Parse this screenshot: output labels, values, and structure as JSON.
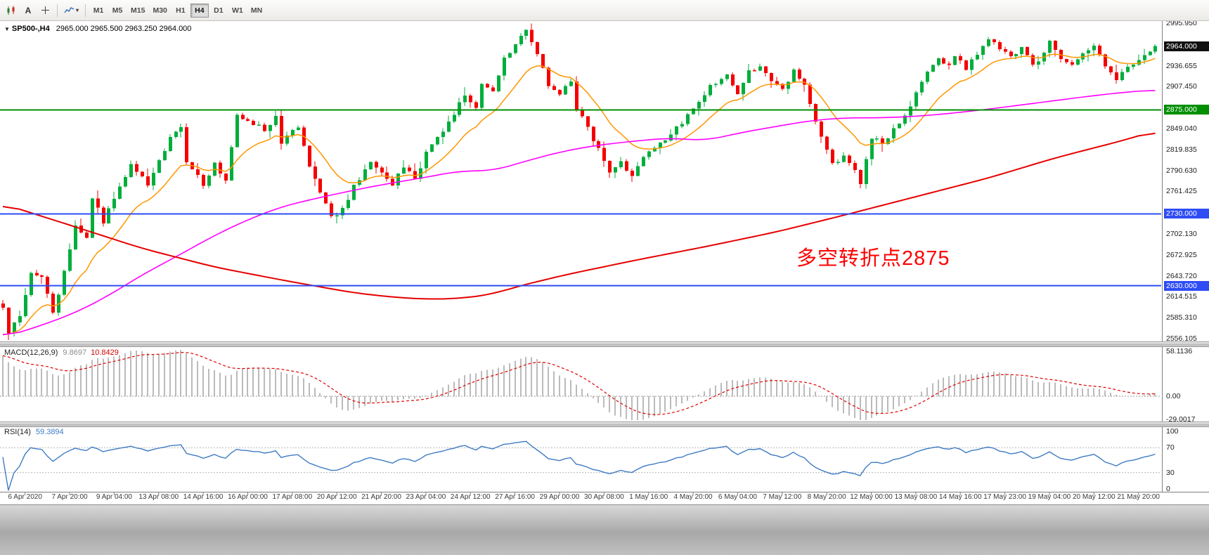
{
  "toolbar": {
    "text_tool_glyph": "A",
    "caret_glyph": "▾",
    "timeframes": [
      "M1",
      "M5",
      "M15",
      "M30",
      "H1",
      "H4",
      "D1",
      "W1",
      "MN"
    ],
    "active_timeframe": "H4",
    "icons": [
      "candlestick-chart-icon",
      "text-annotation-icon",
      "crosshair-icon",
      "indicators-icon"
    ]
  },
  "chart": {
    "collapse_glyph": "▼",
    "symbol_title": "SP500-,H4",
    "ohlc_text": "2965.000 2965.500 2963.250 2964.000",
    "annotation": {
      "text": "多空转折点2875",
      "color": "#FE0000"
    }
  },
  "macd": {
    "label": "MACD(12,26,9)",
    "value1": "9.8697",
    "value2": "10.8429",
    "axis": [
      "58.1136",
      "0.00",
      "-29.0017"
    ]
  },
  "rsi": {
    "label": "RSI(14)",
    "value": "59.3894",
    "axis": [
      "100",
      "70",
      "30",
      "0"
    ]
  },
  "time_axis": [
    "6 Apr 2020",
    "7 Apr 20:00",
    "9 Apr 04:00",
    "13 Apr 08:00",
    "14 Apr 16:00",
    "16 Apr 00:00",
    "17 Apr 08:00",
    "20 Apr 12:00",
    "21 Apr 20:00",
    "23 Apr 04:00",
    "24 Apr 12:00",
    "27 Apr 16:00",
    "29 Apr 00:00",
    "30 Apr 08:00",
    "1 May 16:00",
    "4 May 20:00",
    "6 May 04:00",
    "7 May 12:00",
    "8 May 20:00",
    "12 May 00:00",
    "13 May 08:00",
    "14 May 16:00",
    "17 May 23:00",
    "19 May 04:00",
    "20 May 12:00",
    "21 May 20:00"
  ],
  "chart_data": {
    "type": "candlestick",
    "symbol": "SP500-",
    "timeframe": "H4",
    "num_candles": 208,
    "price_axis": {
      "max": 2995.95,
      "min": 2556.105,
      "step": 29.205,
      "labels": [
        "2995.950",
        "2936.655",
        "2907.450",
        "2849.040",
        "2819.835",
        "2790.630",
        "2761.425",
        "2702.130",
        "2672.925",
        "2643.720",
        "2614.515",
        "2585.310",
        "2556.105"
      ]
    },
    "current_price": {
      "value": 2964.0,
      "label": "2964.000",
      "bg": "#111111"
    },
    "hlines": [
      {
        "price": 2875,
        "label": "2875.000",
        "color": "#008F00"
      },
      {
        "price": 2730,
        "label": "2730.000",
        "color": "#2F4DF5"
      },
      {
        "price": 2630,
        "label": "2630.000",
        "color": "#2F4DF5"
      }
    ],
    "colors": {
      "up": "#00AE3C",
      "down": "#F50000",
      "ma_fast": "#FF9600",
      "ma_mid": "#FF00FF",
      "ma_slow": "#E60000",
      "macd_bar": "#BBBBBB",
      "macd_signal": "#E00000",
      "rsi": "#3E7BC4",
      "level_dotted": "#B8B8B8"
    },
    "price_anchors": [
      [
        0,
        2600
      ],
      [
        1,
        2562
      ],
      [
        3,
        2590
      ],
      [
        5,
        2648
      ],
      [
        7,
        2640
      ],
      [
        9,
        2592
      ],
      [
        11,
        2648
      ],
      [
        13,
        2715
      ],
      [
        15,
        2700
      ],
      [
        16,
        2755
      ],
      [
        18,
        2720
      ],
      [
        21,
        2768
      ],
      [
        23,
        2798
      ],
      [
        26,
        2770
      ],
      [
        30,
        2838
      ],
      [
        32,
        2848
      ],
      [
        33,
        2800
      ],
      [
        36,
        2772
      ],
      [
        38,
        2800
      ],
      [
        40,
        2778
      ],
      [
        42,
        2866
      ],
      [
        44,
        2858
      ],
      [
        47,
        2848
      ],
      [
        49,
        2864
      ],
      [
        50,
        2830
      ],
      [
        53,
        2850
      ],
      [
        55,
        2798
      ],
      [
        57,
        2760
      ],
      [
        59,
        2726
      ],
      [
        61,
        2736
      ],
      [
        63,
        2768
      ],
      [
        66,
        2800
      ],
      [
        68,
        2788
      ],
      [
        70,
        2770
      ],
      [
        72,
        2798
      ],
      [
        74,
        2780
      ],
      [
        76,
        2814
      ],
      [
        78,
        2838
      ],
      [
        81,
        2868
      ],
      [
        83,
        2898
      ],
      [
        85,
        2878
      ],
      [
        86,
        2912
      ],
      [
        88,
        2898
      ],
      [
        90,
        2946
      ],
      [
        92,
        2968
      ],
      [
        94,
        2984
      ],
      [
        96,
        2952
      ],
      [
        98,
        2910
      ],
      [
        100,
        2900
      ],
      [
        102,
        2914
      ],
      [
        103,
        2878
      ],
      [
        105,
        2848
      ],
      [
        107,
        2820
      ],
      [
        109,
        2790
      ],
      [
        111,
        2800
      ],
      [
        113,
        2784
      ],
      [
        115,
        2808
      ],
      [
        117,
        2824
      ],
      [
        120,
        2840
      ],
      [
        122,
        2858
      ],
      [
        125,
        2884
      ],
      [
        127,
        2908
      ],
      [
        130,
        2924
      ],
      [
        132,
        2900
      ],
      [
        134,
        2928
      ],
      [
        136,
        2938
      ],
      [
        138,
        2918
      ],
      [
        140,
        2904
      ],
      [
        142,
        2928
      ],
      [
        144,
        2908
      ],
      [
        146,
        2858
      ],
      [
        148,
        2820
      ],
      [
        149,
        2800
      ],
      [
        151,
        2810
      ],
      [
        153,
        2788
      ],
      [
        154,
        2768
      ],
      [
        156,
        2838
      ],
      [
        158,
        2828
      ],
      [
        160,
        2848
      ],
      [
        162,
        2868
      ],
      [
        164,
        2898
      ],
      [
        166,
        2928
      ],
      [
        168,
        2944
      ],
      [
        170,
        2938
      ],
      [
        171,
        2948
      ],
      [
        173,
        2934
      ],
      [
        175,
        2952
      ],
      [
        177,
        2976
      ],
      [
        179,
        2958
      ],
      [
        181,
        2948
      ],
      [
        183,
        2962
      ],
      [
        185,
        2938
      ],
      [
        187,
        2952
      ],
      [
        188,
        2968
      ],
      [
        190,
        2948
      ],
      [
        192,
        2938
      ],
      [
        194,
        2952
      ],
      [
        196,
        2962
      ],
      [
        198,
        2938
      ],
      [
        200,
        2918
      ],
      [
        202,
        2932
      ],
      [
        204,
        2944
      ],
      [
        206,
        2954
      ],
      [
        207,
        2964
      ]
    ],
    "ma_orange": {
      "period": 13,
      "seed": 2556
    },
    "ma_magenta_anchors": [
      [
        0,
        2558
      ],
      [
        6,
        2572
      ],
      [
        13,
        2592
      ],
      [
        19,
        2616
      ],
      [
        25,
        2645
      ],
      [
        32,
        2674
      ],
      [
        38,
        2700
      ],
      [
        44,
        2722
      ],
      [
        50,
        2740
      ],
      [
        57,
        2753
      ],
      [
        63,
        2763
      ],
      [
        69,
        2772
      ],
      [
        76,
        2781
      ],
      [
        82,
        2790
      ],
      [
        88,
        2790
      ],
      [
        95,
        2806
      ],
      [
        101,
        2818
      ],
      [
        107,
        2826
      ],
      [
        114,
        2832
      ],
      [
        120,
        2836
      ],
      [
        126,
        2832
      ],
      [
        133,
        2844
      ],
      [
        139,
        2852
      ],
      [
        145,
        2860
      ],
      [
        151,
        2864
      ],
      [
        158,
        2864
      ],
      [
        164,
        2866
      ],
      [
        170,
        2870
      ],
      [
        177,
        2876
      ],
      [
        183,
        2882
      ],
      [
        189,
        2888
      ],
      [
        196,
        2895
      ],
      [
        202,
        2900
      ],
      [
        207,
        2903
      ]
    ],
    "ma_red_anchors": [
      [
        0,
        2744
      ],
      [
        13,
        2712
      ],
      [
        25,
        2682
      ],
      [
        38,
        2656
      ],
      [
        50,
        2638
      ],
      [
        63,
        2620
      ],
      [
        70,
        2614
      ],
      [
        76,
        2611
      ],
      [
        82,
        2612
      ],
      [
        88,
        2618
      ],
      [
        92,
        2628
      ],
      [
        101,
        2645
      ],
      [
        114,
        2666
      ],
      [
        126,
        2684
      ],
      [
        139,
        2705
      ],
      [
        151,
        2728
      ],
      [
        164,
        2754
      ],
      [
        177,
        2780
      ],
      [
        189,
        2808
      ],
      [
        196,
        2822
      ],
      [
        202,
        2834
      ],
      [
        207,
        2846
      ]
    ],
    "macd_params": {
      "fast": 12,
      "slow": 26,
      "signal": 9
    },
    "rsi_params": {
      "period": 14
    }
  }
}
